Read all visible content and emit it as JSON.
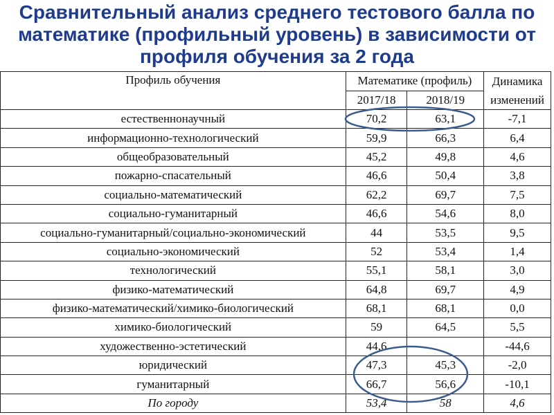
{
  "title": "Сравнительный анализ среднего тестового балла по математике (профильный уровень) в зависимости от профиля обучения за 2 года",
  "table": {
    "headers": {
      "profile": "Профиль обучения",
      "math_group": "Математике (профиль)",
      "year1": "2017/18",
      "year2": "2018/19",
      "dynamics": "Динамика изменений"
    },
    "rows": [
      {
        "profile": "естественнонаучный",
        "y1": "70,2",
        "y2": "63,1",
        "d": "-7,1"
      },
      {
        "profile": "информационно-технологический",
        "y1": "59,9",
        "y2": "66,3",
        "d": "6,4"
      },
      {
        "profile": "общеобразовательный",
        "y1": "45,2",
        "y2": "49,8",
        "d": "4,6"
      },
      {
        "profile": "пожарно-спасательный",
        "y1": "46,6",
        "y2": "50,4",
        "d": "3,8"
      },
      {
        "profile": "социально-математический",
        "y1": "62,2",
        "y2": "69,7",
        "d": "7,5"
      },
      {
        "profile": "социально-гуманитарный",
        "y1": "46,6",
        "y2": "54,6",
        "d": "8,0"
      },
      {
        "profile": "социально-гуманитарный/социально-экономический",
        "y1": "44",
        "y2": "53,5",
        "d": "9,5"
      },
      {
        "profile": "социально-экономический",
        "y1": "52",
        "y2": "53,4",
        "d": "1,4"
      },
      {
        "profile": "технологический",
        "y1": "55,1",
        "y2": "58,1",
        "d": "3,0"
      },
      {
        "profile": "физико-математический",
        "y1": "64,8",
        "y2": "69,7",
        "d": "4,9"
      },
      {
        "profile": "физико-математический/химико-биологический",
        "y1": "68,1",
        "y2": "68,1",
        "d": "0,0"
      },
      {
        "profile": "химико-биологический",
        "y1": "59",
        "y2": "64,5",
        "d": "5,5"
      },
      {
        "profile": "художественно-эстетический",
        "y1": "44,6",
        "y2": "",
        "d": "-44,6"
      },
      {
        "profile": "юридический",
        "y1": "47,3",
        "y2": "45,3",
        "d": "-2,0"
      },
      {
        "profile": "гуманитарный",
        "y1": "66,7",
        "y2": "56,6",
        "d": "-10,1"
      }
    ],
    "total": {
      "profile": "По городу",
      "y1": "53,4",
      "y2": "58",
      "d": "4,6"
    }
  },
  "colors": {
    "title": "#1f3b8c",
    "highlight_ellipse": "#3b5b8f"
  }
}
